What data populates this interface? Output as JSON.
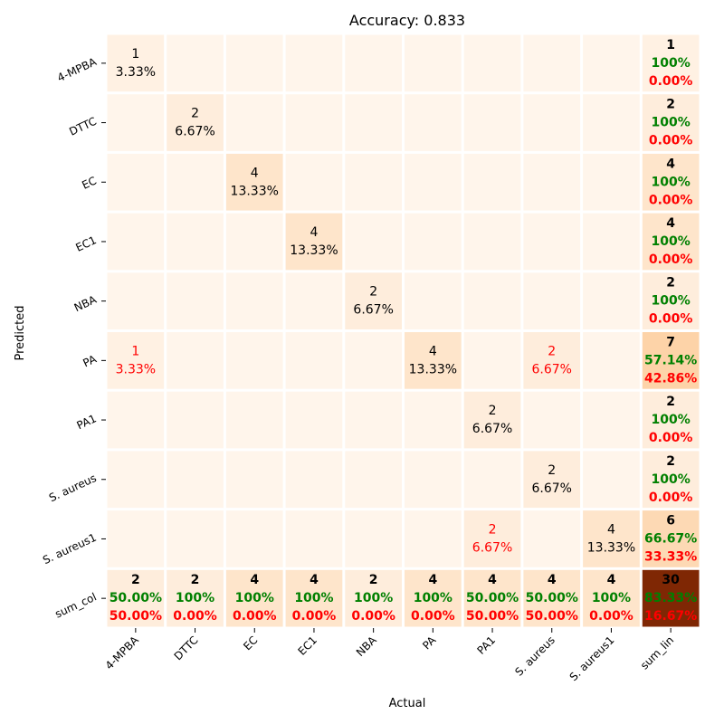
{
  "chart_data": {
    "type": "heatmap",
    "title": "Accuracy: 0.833",
    "xlabel": "Actual",
    "ylabel": "Predicted",
    "x_categories": [
      "4-MPBA",
      "DTTC",
      "EC",
      "EC1",
      "NBA",
      "PA",
      "PA1",
      "S. aureus",
      "S. aureus1",
      "sum_lin"
    ],
    "y_categories": [
      "4-MPBA",
      "DTTC",
      "EC",
      "EC1",
      "NBA",
      "PA",
      "PA1",
      "S. aureus",
      "S. aureus1",
      "sum_col"
    ],
    "matrix": [
      [
        1,
        0,
        0,
        0,
        0,
        0,
        0,
        0,
        0
      ],
      [
        0,
        2,
        0,
        0,
        0,
        0,
        0,
        0,
        0
      ],
      [
        0,
        0,
        4,
        0,
        0,
        0,
        0,
        0,
        0
      ],
      [
        0,
        0,
        0,
        4,
        0,
        0,
        0,
        0,
        0
      ],
      [
        0,
        0,
        0,
        0,
        2,
        0,
        0,
        0,
        0
      ],
      [
        1,
        0,
        0,
        0,
        0,
        4,
        0,
        2,
        0
      ],
      [
        0,
        0,
        0,
        0,
        0,
        0,
        2,
        0,
        0
      ],
      [
        0,
        0,
        0,
        0,
        0,
        0,
        0,
        2,
        0
      ],
      [
        0,
        0,
        0,
        0,
        0,
        0,
        2,
        0,
        4
      ]
    ],
    "cell_percents": [
      [
        "3.33%",
        "",
        "",
        "",
        "",
        "",
        "",
        "",
        ""
      ],
      [
        "",
        "6.67%",
        "",
        "",
        "",
        "",
        "",
        "",
        ""
      ],
      [
        "",
        "",
        "13.33%",
        "",
        "",
        "",
        "",
        "",
        ""
      ],
      [
        "",
        "",
        "",
        "13.33%",
        "",
        "",
        "",
        "",
        ""
      ],
      [
        "",
        "",
        "",
        "",
        "6.67%",
        "",
        "",
        "",
        ""
      ],
      [
        "3.33%",
        "",
        "",
        "",
        "",
        "13.33%",
        "",
        "6.67%",
        ""
      ],
      [
        "",
        "",
        "",
        "",
        "",
        "",
        "6.67%",
        "",
        ""
      ],
      [
        "",
        "",
        "",
        "",
        "",
        "",
        "",
        "6.67%",
        ""
      ],
      [
        "",
        "",
        "",
        "",
        "",
        "",
        "6.67%",
        "",
        "13.33%"
      ]
    ],
    "row_totals": [
      {
        "count": 1,
        "correct": "100%",
        "error": "0.00%"
      },
      {
        "count": 2,
        "correct": "100%",
        "error": "0.00%"
      },
      {
        "count": 4,
        "correct": "100%",
        "error": "0.00%"
      },
      {
        "count": 4,
        "correct": "100%",
        "error": "0.00%"
      },
      {
        "count": 2,
        "correct": "100%",
        "error": "0.00%"
      },
      {
        "count": 7,
        "correct": "57.14%",
        "error": "42.86%"
      },
      {
        "count": 2,
        "correct": "100%",
        "error": "0.00%"
      },
      {
        "count": 2,
        "correct": "100%",
        "error": "0.00%"
      },
      {
        "count": 6,
        "correct": "66.67%",
        "error": "33.33%"
      }
    ],
    "col_totals": [
      {
        "count": 2,
        "correct": "50.00%",
        "error": "50.00%"
      },
      {
        "count": 2,
        "correct": "100%",
        "error": "0.00%"
      },
      {
        "count": 4,
        "correct": "100%",
        "error": "0.00%"
      },
      {
        "count": 4,
        "correct": "100%",
        "error": "0.00%"
      },
      {
        "count": 2,
        "correct": "100%",
        "error": "0.00%"
      },
      {
        "count": 4,
        "correct": "100%",
        "error": "0.00%"
      },
      {
        "count": 4,
        "correct": "50.00%",
        "error": "50.00%"
      },
      {
        "count": 4,
        "correct": "50.00%",
        "error": "50.00%"
      },
      {
        "count": 4,
        "correct": "100%",
        "error": "0.00%"
      }
    ],
    "grand_total": {
      "count": 30,
      "correct": "83.33%",
      "error": "16.67%"
    },
    "colormap": "Oranges",
    "colors": {
      "correct_text": "#008000",
      "error_text": "#ff0000",
      "normal_text": "#000000",
      "cell_gap": "#ffffff"
    }
  }
}
